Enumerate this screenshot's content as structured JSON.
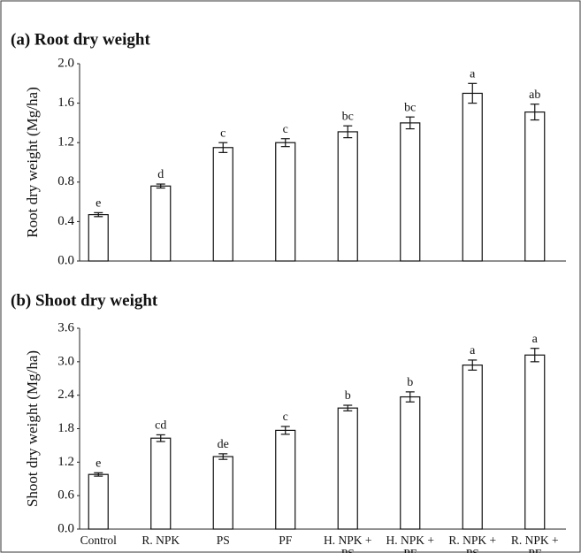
{
  "chart_data": [
    {
      "type": "bar",
      "title": "(a) Root dry weight",
      "y_label": "Root dry weight (Mg/ha)",
      "values": [
        0.47,
        0.76,
        1.15,
        1.2,
        1.31,
        1.4,
        1.7,
        1.51
      ],
      "errors": [
        0.02,
        0.02,
        0.05,
        0.04,
        0.06,
        0.06,
        0.1,
        0.08
      ],
      "annotations": [
        "e",
        "d",
        "c",
        "c",
        "bc",
        "bc",
        "a",
        "ab"
      ],
      "color": "#ffffff",
      "ylim": [
        0,
        2.0
      ],
      "yticks": [
        {
          "value": 0,
          "label": "0.0"
        },
        {
          "value": 0.4,
          "label": "0.4"
        },
        {
          "value": 0.8,
          "label": "0.8"
        },
        {
          "value": 1.2,
          "label": "1.2"
        },
        {
          "value": 1.6,
          "label": "1.6"
        },
        {
          "value": 2.0,
          "label": "2.0"
        }
      ]
    },
    {
      "type": "bar",
      "title": "(b) Shoot dry weight",
      "y_label": "Shoot dry weight (Mg/ha)",
      "categories": [
        "Control",
        "R. NPK",
        "PS",
        "PF",
        "H. NPK + PS",
        "H. NPK + PF",
        "R. NPK + PS",
        "R. NPK + PF"
      ],
      "values": [
        0.98,
        1.63,
        1.3,
        1.77,
        2.17,
        2.37,
        2.94,
        3.12
      ],
      "errors": [
        0.03,
        0.06,
        0.05,
        0.07,
        0.05,
        0.09,
        0.09,
        0.12
      ],
      "annotations": [
        "e",
        "cd",
        "de",
        "c",
        "b",
        "b",
        "a",
        "a"
      ],
      "color": "#ffffff",
      "ylim": [
        0,
        3.6
      ],
      "yticks": [
        {
          "value": 0,
          "label": "0.0"
        },
        {
          "value": 0.6,
          "label": "0.6"
        },
        {
          "value": 1.2,
          "label": "1.2"
        },
        {
          "value": 1.8,
          "label": "1.8"
        },
        {
          "value": 2.4,
          "label": "2.4"
        },
        {
          "value": 3.0,
          "label": "3.0"
        },
        {
          "value": 3.6,
          "label": "3.6"
        }
      ]
    }
  ]
}
